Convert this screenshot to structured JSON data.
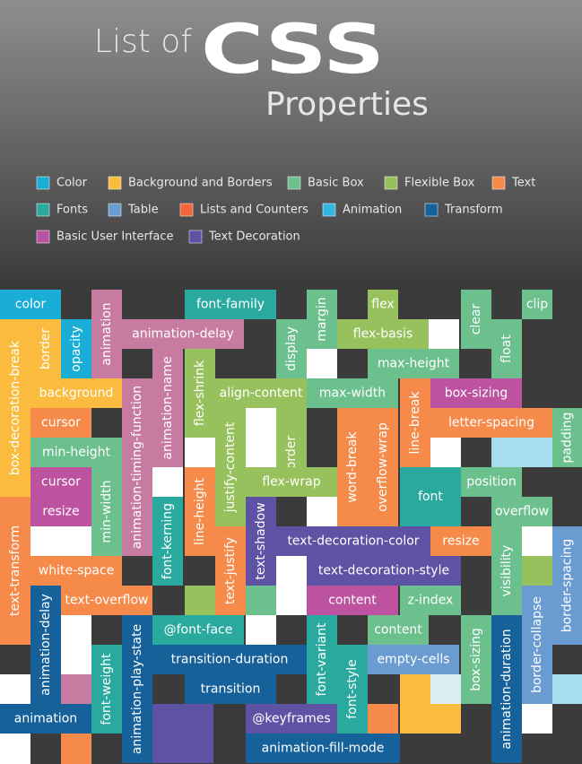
{
  "header": {
    "title_prefix": "List of",
    "title_main": "CSS",
    "subtitle": "Properties"
  },
  "legend": [
    {
      "name": "Color",
      "color": "#1aaed6"
    },
    {
      "name": "Background and Borders",
      "color": "#fbbb3f"
    },
    {
      "name": "Basic Box",
      "color": "#6cc08d"
    },
    {
      "name": "Flexible Box",
      "color": "#97c15c"
    },
    {
      "name": "Text",
      "color": "#f58a4b"
    },
    {
      "name": "Fonts",
      "color": "#2aaa9f"
    },
    {
      "name": "Table",
      "color": "#6a9bd1"
    },
    {
      "name": "Lists and Counters",
      "color": "#f2673a"
    },
    {
      "name": "Animation",
      "color": "#35b6de"
    },
    {
      "name": "Transform",
      "color": "#17619a"
    },
    {
      "name": "Basic User Interface",
      "color": "#bd53a0"
    },
    {
      "name": "Text Decoration",
      "color": "#5d52a3"
    }
  ],
  "tiles": [
    {
      "label": "color",
      "color": "#1aaed6"
    },
    {
      "label": "opacity",
      "color": "#1aaed6"
    },
    {
      "label": "border",
      "color": "#fbbb3f"
    },
    {
      "label": "animation",
      "color": "#c87ba0"
    },
    {
      "label": "animation-delay",
      "color": "#c87ba0"
    },
    {
      "label": "font-family",
      "color": "#2aaa9f"
    },
    {
      "label": "margin",
      "color": "#6cc08d"
    },
    {
      "label": "flex",
      "color": "#97c15c"
    },
    {
      "label": "clear",
      "color": "#6cc08d"
    },
    {
      "label": "clip",
      "color": "#6cc08d"
    },
    {
      "label": "display",
      "color": "#6cc08d"
    },
    {
      "label": "flex-basis",
      "color": "#97c15c"
    },
    {
      "label": "float",
      "color": "#6cc08d"
    },
    {
      "label": "max-height",
      "color": "#6cc08d"
    },
    {
      "label": "box-decoration-break",
      "color": "#fbbb3f"
    },
    {
      "label": "background",
      "color": "#fbbb3f"
    },
    {
      "label": "animation-timing-function",
      "color": "#c87ba0"
    },
    {
      "label": "animation-name",
      "color": "#c87ba0"
    },
    {
      "label": "flex-shrink",
      "color": "#97c15c"
    },
    {
      "label": "align-content",
      "color": "#97c15c"
    },
    {
      "label": "max-width",
      "color": "#6cc08d"
    },
    {
      "label": "box-sizing",
      "color": "#bd53a0"
    },
    {
      "label": "cursor",
      "color": "#f58a4b"
    },
    {
      "label": "line-break",
      "color": "#f58a4b"
    },
    {
      "label": "letter-spacing",
      "color": "#f58a4b"
    },
    {
      "label": "padding",
      "color": "#6cc08d"
    },
    {
      "label": "min-height",
      "color": "#6cc08d"
    },
    {
      "label": "order",
      "color": "#97c15c"
    },
    {
      "label": "justify-content",
      "color": "#97c15c"
    },
    {
      "label": "word-break",
      "color": "#f58a4b"
    },
    {
      "label": "overflow-wrap",
      "color": "#f58a4b"
    },
    {
      "label": "flex-wrap",
      "color": "#97c15c"
    },
    {
      "label": "font",
      "color": "#2aaa9f"
    },
    {
      "label": "position",
      "color": "#6cc08d"
    },
    {
      "label": "cursor",
      "color": "#bd53a0"
    },
    {
      "label": "resize",
      "color": "#bd53a0"
    },
    {
      "label": "min-width",
      "color": "#6cc08d"
    },
    {
      "label": "font-kerning",
      "color": "#2aaa9f"
    },
    {
      "label": "line-height",
      "color": "#f58a4b"
    },
    {
      "label": "text-shadow",
      "color": "#5d52a3"
    },
    {
      "label": "overflow",
      "color": "#6cc08d"
    },
    {
      "label": "text-transform",
      "color": "#f58a4b"
    },
    {
      "label": "text-decoration-color",
      "color": "#5d52a3"
    },
    {
      "label": "resize",
      "color": "#f58a4b"
    },
    {
      "label": "text-justify",
      "color": "#f58a4b"
    },
    {
      "label": "visibility",
      "color": "#6cc08d"
    },
    {
      "label": "border-spacing",
      "color": "#6a9bd1"
    },
    {
      "label": "white-space",
      "color": "#f58a4b"
    },
    {
      "label": "text-decoration-style",
      "color": "#5d52a3"
    },
    {
      "label": "text-overflow",
      "color": "#f58a4b"
    },
    {
      "label": "animation-delay",
      "color": "#17619a"
    },
    {
      "label": "content",
      "color": "#bd53a0"
    },
    {
      "label": "z-index",
      "color": "#6cc08d"
    },
    {
      "label": "border-collapse",
      "color": "#6a9bd1"
    },
    {
      "label": "@font-face",
      "color": "#2aaa9f"
    },
    {
      "label": "content",
      "color": "#6cc08d"
    },
    {
      "label": "animation-play-state",
      "color": "#17619a"
    },
    {
      "label": "font-variant",
      "color": "#2aaa9f"
    },
    {
      "label": "box-sizing",
      "color": "#6cc08d"
    },
    {
      "label": "animation-duration",
      "color": "#17619a"
    },
    {
      "label": "font-weight",
      "color": "#2aaa9f"
    },
    {
      "label": "transition-duration",
      "color": "#17619a"
    },
    {
      "label": "font-style",
      "color": "#2aaa9f"
    },
    {
      "label": "empty-cells",
      "color": "#6a9bd1"
    },
    {
      "label": "transition",
      "color": "#17619a"
    },
    {
      "label": "animation",
      "color": "#17619a"
    },
    {
      "label": "@keyframes",
      "color": "#5d52a3"
    },
    {
      "label": "animation-fill-mode",
      "color": "#17619a"
    }
  ]
}
